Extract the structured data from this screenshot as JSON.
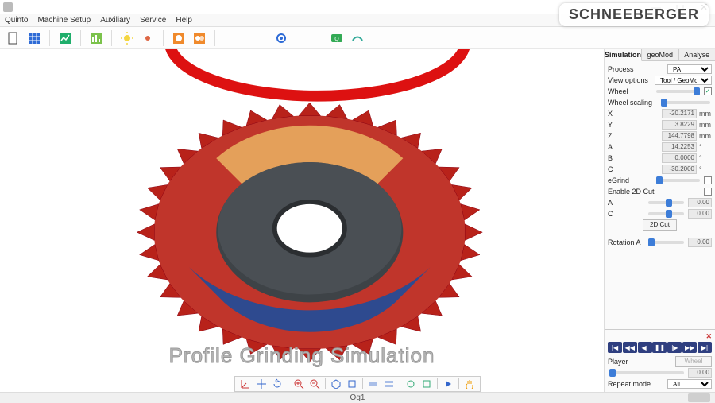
{
  "window": {
    "title": "",
    "min": "—",
    "max": "☐",
    "close": "✕"
  },
  "menu": {
    "items": [
      "Quinto",
      "Machine Setup",
      "Auxiliary",
      "Service",
      "Help"
    ]
  },
  "toolbar_top": {
    "icons": [
      "new",
      "grid",
      "chart",
      "bars",
      "sun",
      "dot",
      "orange1",
      "orange2",
      "",
      "gear",
      "",
      "logo1",
      "logo2"
    ]
  },
  "brand": "SCHNEEBERGER",
  "viewport": {
    "watermark": "Profile Grinding Simulation",
    "gear_colors": {
      "ring": "#d11",
      "teeth_top": "#c0352b",
      "teeth_face": "#e4a05a",
      "hub": "#3e4347",
      "teeth_bottom": "#2e4a8f"
    }
  },
  "bottom_toolbar": {
    "icons": [
      "axis",
      "move",
      "rotate",
      "",
      "zoom-in",
      "zoom-out",
      "",
      "view-iso",
      "view-front",
      "",
      "layer1",
      "layer2",
      "",
      "cfg1",
      "cfg2",
      "",
      "play",
      "",
      "hand"
    ]
  },
  "status": {
    "text": "Og1"
  },
  "panel": {
    "tabs": [
      "Simulation",
      "geoMod",
      "Analyse"
    ],
    "active_tab": 0,
    "process": {
      "label": "Process",
      "value": "PA"
    },
    "view_options": {
      "label": "View options",
      "value": "Tool / GeoMod"
    },
    "wheel": {
      "label": "Wheel",
      "checked": true
    },
    "wheel_scaling": {
      "label": "Wheel scaling"
    },
    "coords": [
      {
        "label": "X",
        "value": "-20.2171",
        "unit": "mm"
      },
      {
        "label": "Y",
        "value": "3.8229",
        "unit": "mm"
      },
      {
        "label": "Z",
        "value": "144.7798",
        "unit": "mm"
      },
      {
        "label": "A",
        "value": "14.2253",
        "unit": "°"
      },
      {
        "label": "B",
        "value": "0.0000",
        "unit": "°"
      },
      {
        "label": "C",
        "value": "-30.2000",
        "unit": "°"
      }
    ],
    "egrind": {
      "label": "eGrind"
    },
    "enable2d": {
      "label": "Enable 2D Cut"
    },
    "ac": [
      {
        "label": "A",
        "value": "0.00"
      },
      {
        "label": "C",
        "value": "0.00"
      }
    ],
    "cut2d_btn": "2D Cut",
    "rotationA": {
      "label": "Rotation A",
      "value": "0.00"
    }
  },
  "player": {
    "label": "Player",
    "wheel_btn": "Wheel",
    "value": "0.00",
    "repeat_label": "Repeat mode",
    "repeat_value": "All",
    "buttons": [
      "|◀",
      "◀◀",
      "◀|",
      "❚❚",
      "|▶",
      "▶▶",
      "▶|"
    ]
  }
}
